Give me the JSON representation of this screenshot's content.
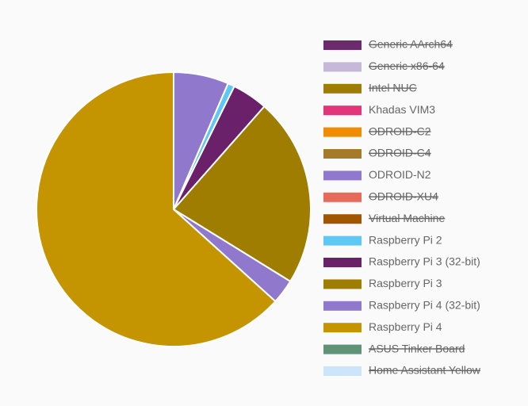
{
  "chart_data": {
    "type": "pie",
    "categories": [
      "Generic AArch64",
      "Generic x86-64",
      "Intel NUC",
      "Khadas VIM3",
      "ODROID-C2",
      "ODROID-C4",
      "ODROID-N2",
      "ODROID-XU4",
      "Virtual Machine",
      "Raspberry Pi 2",
      "Raspberry Pi 3 (32-bit)",
      "Raspberry Pi 3",
      "Raspberry Pi 4 (32-bit)",
      "Raspberry Pi 4",
      "ASUS Tinker Board",
      "Home Assistant Yellow"
    ],
    "values": [
      null,
      null,
      null,
      0,
      null,
      null,
      6.5,
      null,
      null,
      0.8,
      4.2,
      22.3,
      2.9,
      63.3,
      null,
      null
    ],
    "colors": [
      "#6e2a6e",
      "#c5b8d9",
      "#9e7d00",
      "#e3357a",
      "#f08c00",
      "#a57a2a",
      "#9079cc",
      "#e86a5a",
      "#a25500",
      "#5ec8f5",
      "#6a2169",
      "#9e7d00",
      "#9079cc",
      "#c49500",
      "#5f9479",
      "#cce5fb"
    ],
    "hidden": [
      true,
      true,
      true,
      false,
      true,
      true,
      false,
      true,
      true,
      false,
      false,
      false,
      false,
      false,
      true,
      true
    ]
  }
}
